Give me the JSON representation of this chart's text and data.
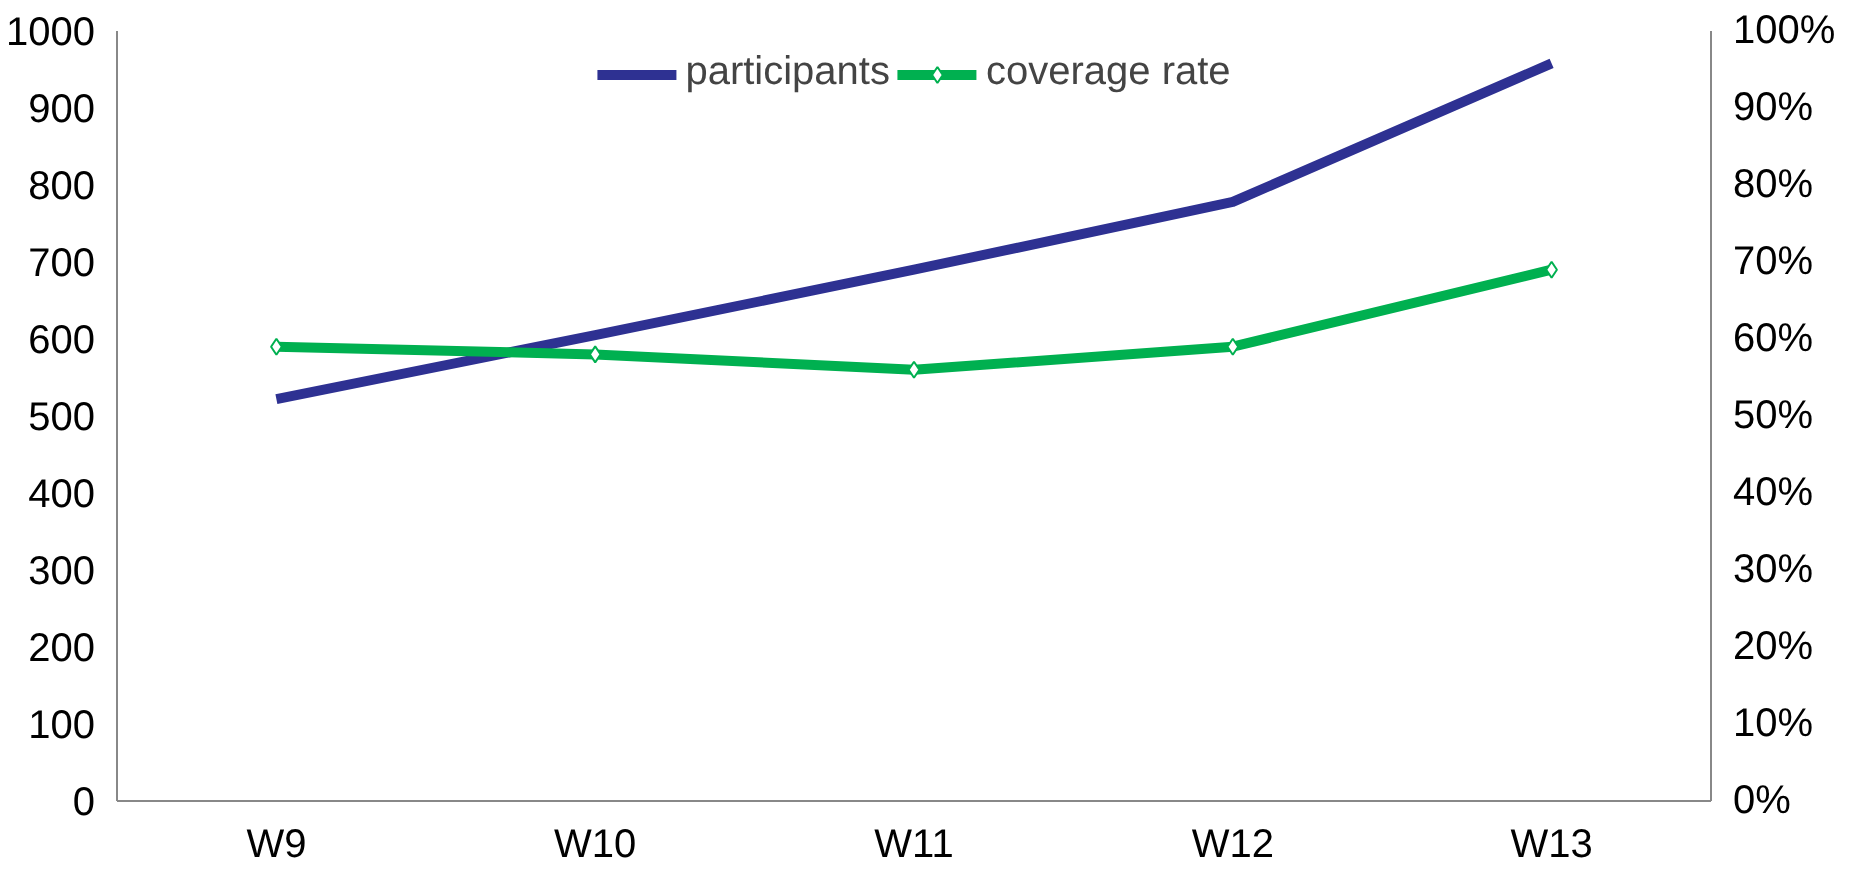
{
  "chart_data": {
    "type": "line",
    "categories": [
      "W9",
      "W10",
      "W11",
      "W12",
      "W13"
    ],
    "series": [
      {
        "name": "participants",
        "color": "#2e3192",
        "values": [
          522,
          605,
          690,
          778,
          958
        ],
        "marker": "none"
      },
      {
        "name": "coverage rate",
        "color": "#00b050",
        "values": [
          59,
          58,
          56,
          59,
          69
        ],
        "axis": "y2",
        "marker": "diamond"
      }
    ],
    "ylim": [
      0,
      1000
    ],
    "yticks": [
      0,
      100,
      200,
      300,
      400,
      500,
      600,
      700,
      800,
      900,
      1000
    ],
    "y2lim": [
      0,
      100
    ],
    "y2ticks": [
      {
        "value": 0,
        "label": "0%"
      },
      {
        "value": 10,
        "label": "10%"
      },
      {
        "value": 20,
        "label": "20%"
      },
      {
        "value": 30,
        "label": "30%"
      },
      {
        "value": 40,
        "label": "40%"
      },
      {
        "value": 50,
        "label": "50%"
      },
      {
        "value": 60,
        "label": "60%"
      },
      {
        "value": 70,
        "label": "70%"
      },
      {
        "value": 80,
        "label": "80%"
      },
      {
        "value": 90,
        "label": "90%"
      },
      {
        "value": 100,
        "label": "100%"
      }
    ],
    "grid": false,
    "legend": "top",
    "line_style": "solid"
  }
}
